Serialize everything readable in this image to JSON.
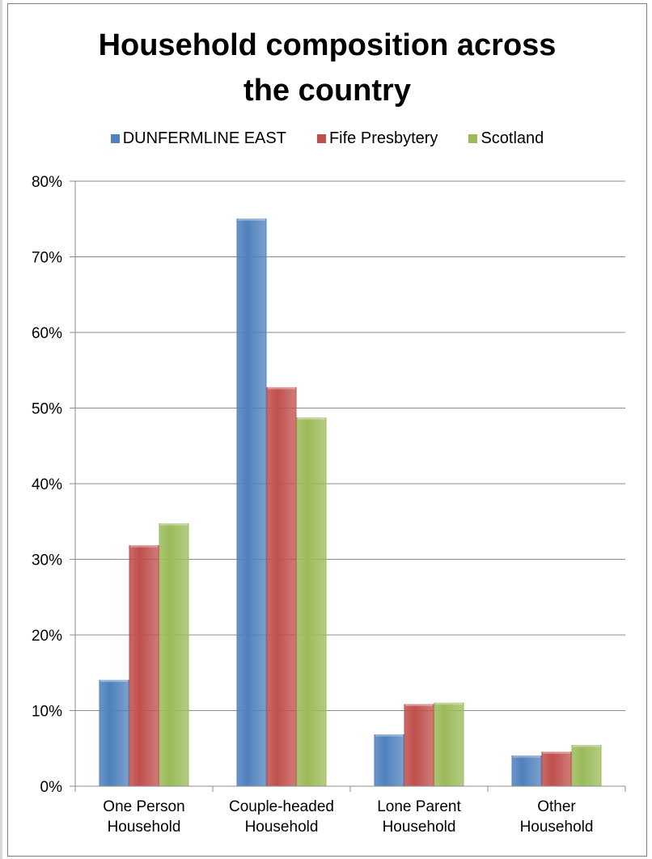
{
  "chart_data": {
    "type": "bar",
    "title": "Household composition across the country",
    "title_lines": [
      "Household composition across",
      "the country"
    ],
    "categories": [
      "One Person Household",
      "Couple-headed Household",
      "Lone Parent Household",
      "Other Household"
    ],
    "category_lines": [
      [
        "One Person",
        "Household"
      ],
      [
        "Couple-headed",
        "Household"
      ],
      [
        "Lone Parent",
        "Household"
      ],
      [
        "Other",
        "Household"
      ]
    ],
    "series": [
      {
        "name": "DUNFERMLINE EAST",
        "color": "#4f81bd",
        "values": [
          14.0,
          75.0,
          6.8,
          4.0
        ]
      },
      {
        "name": "Fife Presbytery",
        "color": "#c0504d",
        "values": [
          31.8,
          52.7,
          10.8,
          4.5
        ]
      },
      {
        "name": "Scotland",
        "color": "#9bbb59",
        "values": [
          34.7,
          48.7,
          11.0,
          5.4
        ]
      }
    ],
    "ylim": [
      0,
      80
    ],
    "yticks": [
      "0%",
      "10%",
      "20%",
      "30%",
      "40%",
      "50%",
      "60%",
      "70%",
      "80%"
    ],
    "xlabel": "",
    "ylabel": "",
    "grid": true,
    "legend_position": "top"
  }
}
